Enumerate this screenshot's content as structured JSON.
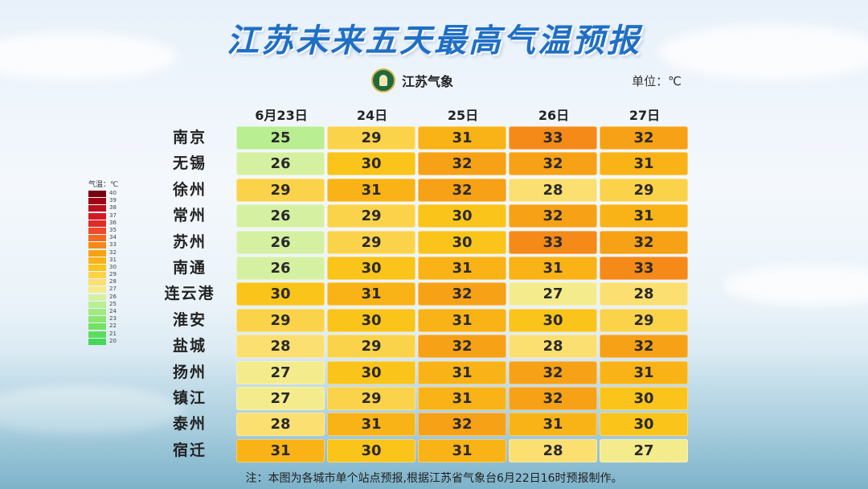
{
  "title": "江苏未来五天最高气温预报",
  "logo_text": "江苏气象",
  "unit_label": "单位：℃",
  "note": "注：本图为各城市单个站点预报,根据江苏省气象台6月22日16时预报制作。",
  "legend": {
    "title": "气温：℃",
    "levels": [
      {
        "value": "40",
        "color": "#7a0010"
      },
      {
        "value": "39",
        "color": "#9c0616"
      },
      {
        "value": "38",
        "color": "#b9101e"
      },
      {
        "value": "37",
        "color": "#d21a22"
      },
      {
        "value": "36",
        "color": "#e22a26"
      },
      {
        "value": "35",
        "color": "#ec4a2a"
      },
      {
        "value": "34",
        "color": "#f26a22"
      },
      {
        "value": "33",
        "color": "#f58a18"
      },
      {
        "value": "32",
        "color": "#f7a116"
      },
      {
        "value": "31",
        "color": "#f9b316"
      },
      {
        "value": "30",
        "color": "#fac41a"
      },
      {
        "value": "29",
        "color": "#fbd34a"
      },
      {
        "value": "28",
        "color": "#fbdf70"
      },
      {
        "value": "27",
        "color": "#f4ec8c"
      },
      {
        "value": "26",
        "color": "#d6f0a2"
      },
      {
        "value": "25",
        "color": "#baee92"
      },
      {
        "value": "24",
        "color": "#a2ea80"
      },
      {
        "value": "23",
        "color": "#8ae670"
      },
      {
        "value": "22",
        "color": "#72e262"
      },
      {
        "value": "21",
        "color": "#5cdc5a"
      },
      {
        "value": "20",
        "color": "#48d65a"
      }
    ]
  },
  "chart_data": {
    "type": "heatmap",
    "title": "江苏未来五天最高气温预报",
    "unit": "℃",
    "columns": [
      "6月23日",
      "24日",
      "25日",
      "26日",
      "27日"
    ],
    "rows": [
      {
        "city": "南京",
        "values": [
          25,
          29,
          31,
          33,
          32
        ]
      },
      {
        "city": "无锡",
        "values": [
          26,
          30,
          32,
          32,
          31
        ]
      },
      {
        "city": "徐州",
        "values": [
          29,
          31,
          32,
          28,
          29
        ]
      },
      {
        "city": "常州",
        "values": [
          26,
          29,
          30,
          32,
          31
        ]
      },
      {
        "city": "苏州",
        "values": [
          26,
          29,
          30,
          33,
          32
        ]
      },
      {
        "city": "南通",
        "values": [
          26,
          30,
          31,
          31,
          33
        ]
      },
      {
        "city": "连云港",
        "values": [
          30,
          31,
          32,
          27,
          28
        ]
      },
      {
        "city": "淮安",
        "values": [
          29,
          30,
          31,
          30,
          29
        ]
      },
      {
        "city": "盐城",
        "values": [
          28,
          29,
          32,
          28,
          32
        ]
      },
      {
        "city": "扬州",
        "values": [
          27,
          30,
          31,
          32,
          31
        ]
      },
      {
        "city": "镇江",
        "values": [
          27,
          29,
          31,
          32,
          30
        ]
      },
      {
        "city": "泰州",
        "values": [
          28,
          31,
          32,
          31,
          30
        ]
      },
      {
        "city": "宿迁",
        "values": [
          31,
          30,
          31,
          28,
          27
        ]
      }
    ]
  }
}
